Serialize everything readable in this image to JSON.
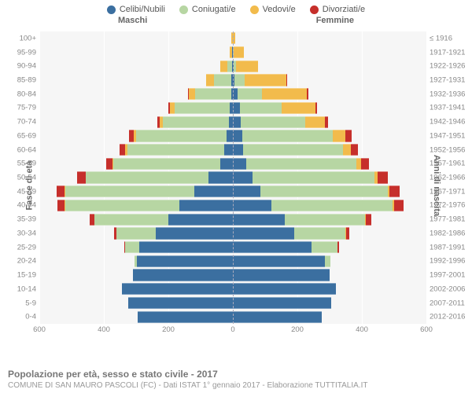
{
  "type": "population-pyramid",
  "legend": [
    {
      "label": "Celibi/Nubili",
      "color": "#3b6fa0"
    },
    {
      "label": "Coniugati/e",
      "color": "#b7d6a3"
    },
    {
      "label": "Vedovi/e",
      "color": "#f2bb4c"
    },
    {
      "label": "Divorziati/e",
      "color": "#c62f2b"
    }
  ],
  "headers": {
    "male": "Maschi",
    "female": "Femmine"
  },
  "axis_left_label": "Fasce di età",
  "axis_right_label": "Anni di nascita",
  "xmax": 600,
  "xticks": [
    -600,
    -400,
    -200,
    0,
    200,
    400,
    600
  ],
  "xtick_labels": [
    "600",
    "400",
    "200",
    "0",
    "200",
    "400",
    "600"
  ],
  "background_color": "#f6f6f6",
  "grid_color": "#ffffff",
  "midline_color": "#aab4c8",
  "title": "Popolazione per età, sesso e stato civile - 2017",
  "subtitle": "COMUNE DI SAN MAURO PASCOLI (FC) - Dati ISTAT 1° gennaio 2017 - Elaborazione TUTTITALIA.IT",
  "age_bands": [
    {
      "age": "100+",
      "birth": "≤ 1916",
      "m": [
        0,
        0,
        5,
        0
      ],
      "f": [
        0,
        0,
        8,
        0
      ]
    },
    {
      "age": "95-99",
      "birth": "1917-1921",
      "m": [
        2,
        1,
        8,
        0
      ],
      "f": [
        1,
        2,
        30,
        0
      ]
    },
    {
      "age": "90-94",
      "birth": "1922-1926",
      "m": [
        3,
        15,
        20,
        0
      ],
      "f": [
        3,
        6,
        70,
        0
      ]
    },
    {
      "age": "85-89",
      "birth": "1927-1931",
      "m": [
        4,
        55,
        25,
        0
      ],
      "f": [
        6,
        30,
        130,
        1
      ]
    },
    {
      "age": "80-84",
      "birth": "1932-1936",
      "m": [
        6,
        110,
        20,
        2
      ],
      "f": [
        15,
        75,
        140,
        3
      ]
    },
    {
      "age": "75-79",
      "birth": "1937-1941",
      "m": [
        10,
        170,
        15,
        4
      ],
      "f": [
        22,
        130,
        105,
        5
      ]
    },
    {
      "age": "70-74",
      "birth": "1942-1946",
      "m": [
        12,
        205,
        10,
        8
      ],
      "f": [
        25,
        200,
        60,
        10
      ]
    },
    {
      "age": "65-69",
      "birth": "1947-1951",
      "m": [
        20,
        280,
        8,
        15
      ],
      "f": [
        30,
        280,
        40,
        18
      ]
    },
    {
      "age": "60-64",
      "birth": "1952-1956",
      "m": [
        28,
        300,
        5,
        18
      ],
      "f": [
        32,
        310,
        25,
        20
      ]
    },
    {
      "age": "55-59",
      "birth": "1957-1961",
      "m": [
        40,
        330,
        3,
        20
      ],
      "f": [
        42,
        340,
        15,
        25
      ]
    },
    {
      "age": "50-54",
      "birth": "1962-1966",
      "m": [
        75,
        380,
        2,
        25
      ],
      "f": [
        60,
        380,
        10,
        30
      ]
    },
    {
      "age": "45-49",
      "birth": "1967-1971",
      "m": [
        120,
        400,
        1,
        25
      ],
      "f": [
        85,
        395,
        6,
        32
      ]
    },
    {
      "age": "40-44",
      "birth": "1972-1976",
      "m": [
        165,
        355,
        1,
        22
      ],
      "f": [
        120,
        375,
        4,
        30
      ]
    },
    {
      "age": "35-39",
      "birth": "1977-1981",
      "m": [
        200,
        230,
        0,
        15
      ],
      "f": [
        160,
        250,
        2,
        18
      ]
    },
    {
      "age": "30-34",
      "birth": "1982-1986",
      "m": [
        240,
        120,
        0,
        8
      ],
      "f": [
        190,
        160,
        1,
        10
      ]
    },
    {
      "age": "25-29",
      "birth": "1987-1991",
      "m": [
        290,
        45,
        0,
        2
      ],
      "f": [
        245,
        80,
        0,
        4
      ]
    },
    {
      "age": "20-24",
      "birth": "1992-1996",
      "m": [
        298,
        7,
        0,
        0
      ],
      "f": [
        285,
        18,
        0,
        0
      ]
    },
    {
      "age": "15-19",
      "birth": "1997-2001",
      "m": [
        310,
        0,
        0,
        0
      ],
      "f": [
        300,
        0,
        0,
        0
      ]
    },
    {
      "age": "10-14",
      "birth": "2002-2006",
      "m": [
        345,
        0,
        0,
        0
      ],
      "f": [
        320,
        0,
        0,
        0
      ]
    },
    {
      "age": "5-9",
      "birth": "2007-2011",
      "m": [
        325,
        0,
        0,
        0
      ],
      "f": [
        305,
        0,
        0,
        0
      ]
    },
    {
      "age": "0-4",
      "birth": "2012-2016",
      "m": [
        295,
        0,
        0,
        0
      ],
      "f": [
        275,
        0,
        0,
        0
      ]
    }
  ]
}
